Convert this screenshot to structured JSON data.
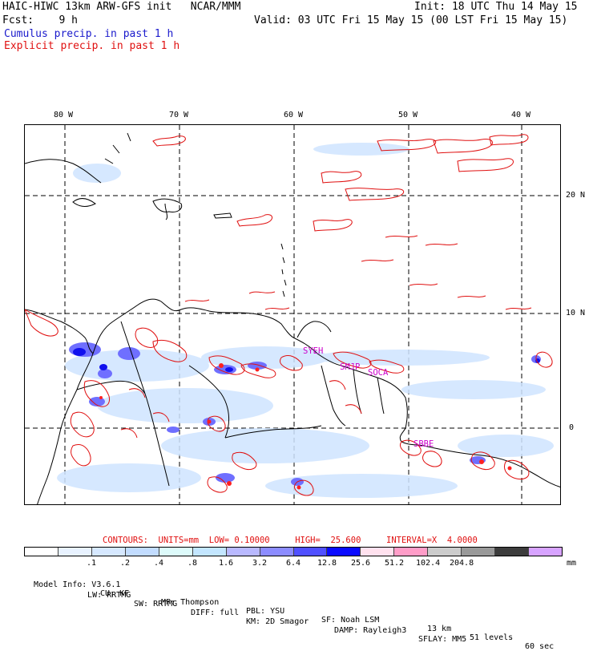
{
  "header": {
    "title": "HAIC-HIWC 13km ARW-GFS init   NCAR/MMM",
    "init": "Init: 18 UTC Thu 14 May 15",
    "fcst": "Fcst:    9 h",
    "valid": "Valid: 03 UTC Fri 15 May 15 (00 LST Fri 15 May 15)",
    "cumulus": "Cumulus precip. in past 1 h",
    "explicit": "Explicit precip. in past 1 h"
  },
  "map": {
    "lon_labels": [
      "80 W",
      "70 W",
      "60 W",
      "50 W",
      "40 W"
    ],
    "lat_labels": [
      "20 N",
      "10 N",
      "0"
    ],
    "stations": [
      "SYEH",
      "SMJP",
      "SOCA",
      "SBBE"
    ]
  },
  "contours": {
    "label": "CONTOURS:  UNITS=mm  LOW= 0.10000     HIGH=  25.600     INTERVAL=X  4.0000"
  },
  "legend": {
    "colors": [
      "#ffffff",
      "#e8f2ff",
      "#d6e8ff",
      "#c2dcff",
      "#ddfbfb",
      "#c3e6ff",
      "#b9b9ff",
      "#8c8cff",
      "#5050ff",
      "#0a0aff",
      "#ffe1ee",
      "#ff9dc8",
      "#cccccc",
      "#999999",
      "#3c3c3c",
      "#d7a3ff"
    ],
    "labels": [
      ".1",
      ".2",
      ".4",
      ".8",
      "1.6",
      "3.2",
      "6.4",
      "12.8",
      "25.6",
      "51.2",
      "102.4",
      "204.8"
    ],
    "unit": "mm"
  },
  "footer": {
    "line1": [
      "Model Info: V3.6.1",
      "CU: KF",
      "MP: Thompson",
      "PBL: YSU",
      "SF: Noah LSM",
      "13 km",
      "51 levels",
      "60 sec"
    ],
    "line2": [
      "LW: RRTMG",
      "SW: RRTMG",
      "DIFF: full",
      "KM: 2D Smagor",
      "DAMP: Rayleigh3",
      "SFLAY: MM5"
    ]
  }
}
